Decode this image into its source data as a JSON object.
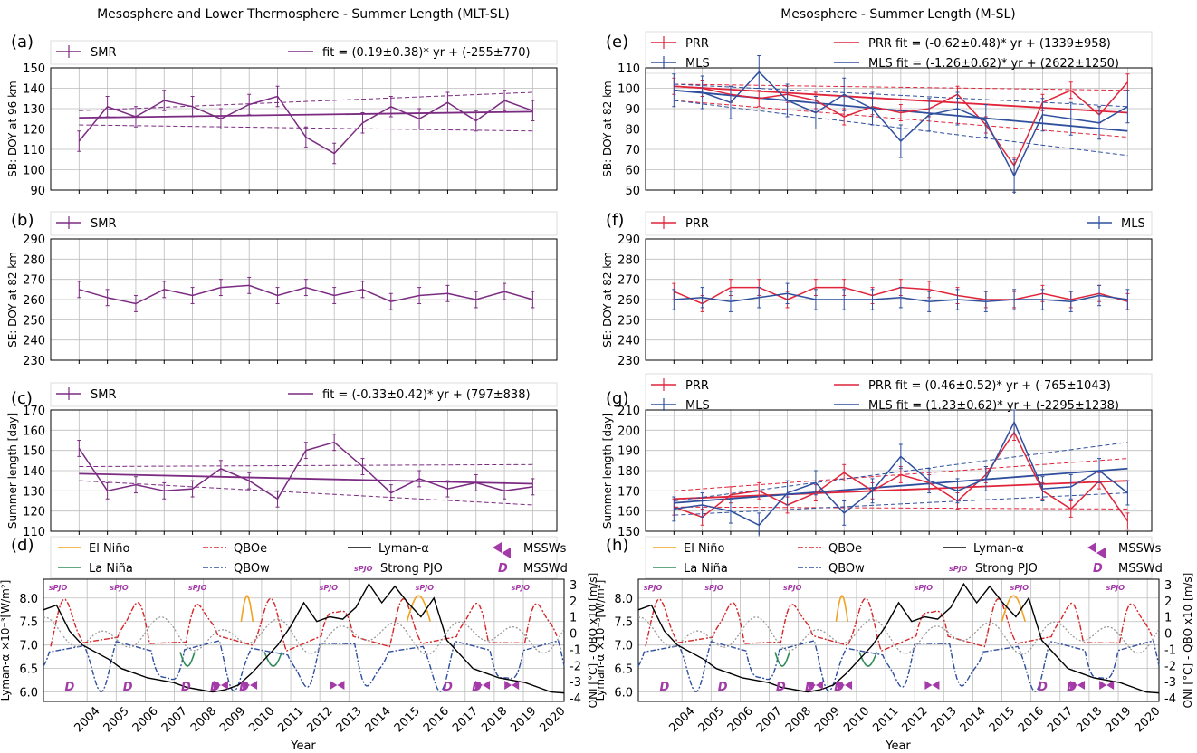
{
  "titles": {
    "left": "Mesosphere and Lower Thermosphere - Summer Length (MLT-SL)",
    "right": "Mesosphere - Summer Length (M-SL)"
  },
  "xlabel": "Year",
  "years": [
    2004,
    2005,
    2006,
    2007,
    2008,
    2009,
    2010,
    2011,
    2012,
    2013,
    2014,
    2015,
    2016,
    2017,
    2018,
    2019,
    2020
  ],
  "colors": {
    "smr": "#7b2b82",
    "prr": "#e0243a",
    "mls": "#2f4f9e",
    "grid": "#bdbdbd",
    "elnino": "#f2a21e",
    "lanina": "#2e8b57",
    "qboe": "#d62728",
    "qbow": "#2f4f9e",
    "lyman": "#000000",
    "onidot": "#999999",
    "event": "#a33aa8"
  },
  "legend_d": {
    "elnino": "El Niño",
    "lanina": "La Niña",
    "qboe": "QBOe",
    "qbow": "QBOw",
    "lyman": "Lyman-α",
    "pjo": "Strong PJO",
    "mssws": "MSSWs",
    "msswd": "MSSWd",
    "pjo_mark": "sPJO",
    "d_mark": "D"
  },
  "chart_data": [
    {
      "panel": "(a)",
      "type": "line",
      "ylabel": "SB: DOY at 96 km",
      "ylim": [
        90,
        150
      ],
      "yticks": [
        90,
        100,
        110,
        120,
        130,
        140,
        150
      ],
      "legend": {
        "left": "SMR",
        "right": "fit = (0.19±0.38)* yr + (-255±770)"
      },
      "series": [
        {
          "name": "SMR",
          "color": "smr",
          "err": 5,
          "values": [
            114,
            131,
            126,
            134,
            131,
            125,
            132,
            136,
            116,
            108,
            123,
            131,
            125,
            133,
            124,
            134,
            129
          ]
        }
      ],
      "fit": {
        "start": 125.5,
        "end": 128.5,
        "lo": [
          122,
          119
        ],
        "hi": [
          129,
          138
        ],
        "color": "smr"
      }
    },
    {
      "panel": "(b)",
      "type": "line",
      "ylabel": "SE: DOY at 82 km",
      "ylim": [
        230,
        290
      ],
      "yticks": [
        230,
        240,
        250,
        260,
        270,
        280,
        290
      ],
      "legend": {
        "left": "SMR"
      },
      "series": [
        {
          "name": "SMR",
          "color": "smr",
          "err": 4,
          "values": [
            265,
            261,
            258,
            265,
            262,
            266,
            267,
            262,
            266,
            262,
            265,
            259,
            262,
            263,
            260,
            264,
            260
          ]
        }
      ]
    },
    {
      "panel": "(c)",
      "type": "line",
      "ylabel": "Summer length [day]",
      "ylim": [
        110,
        170
      ],
      "yticks": [
        110,
        120,
        130,
        140,
        150,
        160,
        170
      ],
      "legend": {
        "left": "SMR",
        "right": "fit = (-0.33±0.42)* yr + (797±838)"
      },
      "series": [
        {
          "name": "SMR",
          "color": "smr",
          "err": 4,
          "values": [
            151,
            130,
            133,
            130,
            131,
            141,
            135,
            126,
            150,
            154,
            142,
            129,
            136,
            131,
            134,
            130,
            132
          ]
        }
      ],
      "fit": {
        "start": 138.5,
        "end": 133.5,
        "lo": [
          135,
          123
        ],
        "hi": [
          142,
          143
        ],
        "color": "smr"
      }
    },
    {
      "panel": "(e)",
      "type": "line",
      "ylabel": "SB: DOY at 82 km",
      "ylim": [
        50,
        110
      ],
      "yticks": [
        50,
        60,
        70,
        80,
        90,
        100,
        110
      ],
      "legend": {
        "left": [
          "PRR",
          "MLS"
        ],
        "right": [
          "PRR fit = (-0.62±0.48)* yr + (1339±958)",
          "MLS fit = (-1.26±0.62)* yr + (2622±1250)"
        ]
      },
      "series": [
        {
          "name": "PRR",
          "color": "prr",
          "err": 4,
          "values": [
            101,
            100,
            97,
            95,
            97,
            94,
            86,
            91,
            88,
            90,
            97,
            82,
            62,
            93,
            99,
            87,
            103
          ]
        },
        {
          "name": "MLS",
          "color": "mls",
          "err": 8,
          "values": [
            99,
            98,
            93,
            108,
            94,
            88,
            97,
            90,
            74,
            87,
            90,
            84,
            57,
            87,
            85,
            83,
            91
          ]
        }
      ],
      "fits": [
        {
          "color": "prr",
          "start": 101,
          "end": 88,
          "lo": [
            94,
            76
          ],
          "hi": [
            102,
            99
          ]
        },
        {
          "color": "mls",
          "start": 99,
          "end": 79,
          "lo": [
            94,
            67
          ],
          "hi": [
            102,
            91
          ]
        }
      ]
    },
    {
      "panel": "(f)",
      "type": "line",
      "ylabel": "SE: DOY at 82 km",
      "ylim": [
        230,
        290
      ],
      "yticks": [
        230,
        240,
        250,
        260,
        270,
        280,
        290
      ],
      "legend": {
        "left": "PRR",
        "right": "MLS"
      },
      "series": [
        {
          "name": "PRR",
          "color": "prr",
          "err": 4,
          "values": [
            264,
            258,
            266,
            266,
            260,
            266,
            266,
            262,
            266,
            265,
            262,
            260,
            260,
            263,
            260,
            263,
            259
          ]
        },
        {
          "name": "MLS",
          "color": "mls",
          "err": 5,
          "values": [
            260,
            261,
            259,
            261,
            263,
            260,
            260,
            260,
            261,
            259,
            260,
            259,
            260,
            260,
            259,
            262,
            260
          ]
        }
      ]
    },
    {
      "panel": "(g)",
      "type": "line",
      "ylabel": "Summer length [day]",
      "ylim": [
        150,
        210
      ],
      "yticks": [
        150,
        160,
        170,
        180,
        190,
        200,
        210
      ],
      "legend": {
        "left": [
          "PRR",
          "MLS"
        ],
        "right": [
          "PRR fit = (0.46±0.52)* yr + (-765±1043)",
          "MLS fit = (1.23±0.62)* yr + (-2295±1238)"
        ]
      },
      "series": [
        {
          "name": "PRR",
          "color": "prr",
          "err": 4,
          "values": [
            162,
            157,
            168,
            170,
            163,
            169,
            179,
            170,
            178,
            174,
            165,
            178,
            199,
            170,
            161,
            175,
            155
          ]
        },
        {
          "name": "MLS",
          "color": "mls",
          "err": 6,
          "values": [
            161,
            163,
            160,
            153,
            169,
            174,
            159,
            170,
            187,
            175,
            170,
            176,
            204,
            171,
            172,
            180,
            169
          ]
        }
      ],
      "fits": [
        {
          "color": "prr",
          "start": 166,
          "end": 175,
          "lo": [
            162,
            161
          ],
          "hi": [
            170,
            186
          ]
        },
        {
          "color": "mls",
          "start": 164,
          "end": 181,
          "lo": [
            158,
            169
          ],
          "hi": [
            165,
            194
          ]
        }
      ]
    }
  ],
  "panel_d": {
    "panels": [
      "(d)",
      "(h)"
    ],
    "ylabel_left": "Lyman-α ×10⁻³[W/m²]",
    "ylabel_right": "ONI [°C] - QBO x10 [m/s]",
    "ylim_left": [
      5.8,
      8.4
    ],
    "yticks_left": [
      "6.0",
      "6.5",
      "7.0",
      "7.5",
      "8.0"
    ],
    "yticks_right": [
      "-4",
      "-3",
      "-2",
      "-1",
      "0",
      "1",
      "2",
      "3"
    ],
    "lyman": [
      7.75,
      7.85,
      7.3,
      7.0,
      6.85,
      6.7,
      6.5,
      6.4,
      6.3,
      6.25,
      6.2,
      6.1,
      6.05,
      6.0,
      6.05,
      6.15,
      6.4,
      6.7,
      7.0,
      7.4,
      7.9,
      7.5,
      7.6,
      7.55,
      7.8,
      8.3,
      7.9,
      8.25,
      7.9,
      7.6,
      8.0,
      7.1,
      6.8,
      6.5,
      6.4,
      6.3,
      6.25,
      6.2,
      6.1,
      6.0,
      5.98
    ],
    "spjo_years": [
      2003.5,
      2005.6,
      2008.3,
      2012.8,
      2016.1,
      2019.4
    ],
    "mssw_years": [
      2009,
      2010,
      2013,
      2018,
      2019
    ],
    "d_years": [
      2004,
      2006,
      2008,
      2009,
      2010,
      2017,
      2018
    ],
    "elnino_years": [
      [
        2009.8,
        2010.2
      ],
      [
        2015.5,
        2016.3
      ]
    ],
    "lanina_years": [
      [
        2007.7,
        2008.2
      ],
      [
        2010.6,
        2011.2
      ]
    ]
  }
}
